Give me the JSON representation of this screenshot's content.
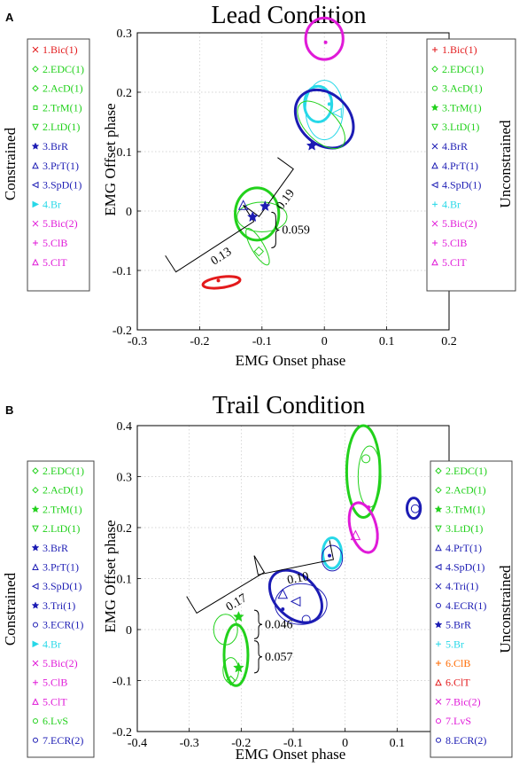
{
  "chart_data": [
    {
      "type": "scatter",
      "panel_label": "A",
      "title": "Lead Condition",
      "xlabel": "EMG Onset phase",
      "ylabel": "EMG Offset phase",
      "xlim": [
        -0.3,
        0.2
      ],
      "ylim": [
        -0.2,
        0.3
      ],
      "xticks": [
        "-0.3",
        "-0.2",
        "-0.1",
        "0",
        "0.1",
        "0.2"
      ],
      "yticks": [
        "-0.2",
        "-0.1",
        "0",
        "0.1",
        "0.2",
        "0.3"
      ],
      "grid": true,
      "left_legend_side_label": "Constrained",
      "right_legend_side_label": "Unconstrained",
      "left_legend": [
        {
          "label": "1.Bic(1)",
          "color": "#e31a1c",
          "marker": "x"
        },
        {
          "label": "2.EDC(1)",
          "color": "#22d11c",
          "marker": "diamond"
        },
        {
          "label": "2.AcD(1)",
          "color": "#22d11c",
          "marker": "diamond"
        },
        {
          "label": "2.TrM(1)",
          "color": "#22d11c",
          "marker": "square"
        },
        {
          "label": "2.LtD(1)",
          "color": "#22d11c",
          "marker": "triangle-down"
        },
        {
          "label": "3.BrR",
          "color": "#1c1cb4",
          "marker": "star"
        },
        {
          "label": "3.PrT(1)",
          "color": "#1c1cb4",
          "marker": "triangle-up"
        },
        {
          "label": "3.SpD(1)",
          "color": "#1c1cb4",
          "marker": "triangle-left"
        },
        {
          "label": "4.Br",
          "color": "#27d8e8",
          "marker": "triangle-right"
        },
        {
          "label": "5.Bic(2)",
          "color": "#e01ad8",
          "marker": "x"
        },
        {
          "label": "5.ClB",
          "color": "#e01ad8",
          "marker": "plus"
        },
        {
          "label": "5.ClT",
          "color": "#e01ad8",
          "marker": "triangle-up"
        }
      ],
      "right_legend": [
        {
          "label": "1.Bic(1)",
          "color": "#e31a1c",
          "marker": "plus"
        },
        {
          "label": "2.EDC(1)",
          "color": "#22d11c",
          "marker": "diamond"
        },
        {
          "label": "3.AcD(1)",
          "color": "#22d11c",
          "marker": "circle"
        },
        {
          "label": "3.TrM(1)",
          "color": "#22d11c",
          "marker": "star"
        },
        {
          "label": "3.LtD(1)",
          "color": "#22d11c",
          "marker": "triangle-down"
        },
        {
          "label": "4.BrR",
          "color": "#1c1cb4",
          "marker": "x"
        },
        {
          "label": "4.PrT(1)",
          "color": "#1c1cb4",
          "marker": "triangle-up"
        },
        {
          "label": "4.SpD(1)",
          "color": "#1c1cb4",
          "marker": "triangle-left"
        },
        {
          "label": "4.Br",
          "color": "#27d8e8",
          "marker": "plus"
        },
        {
          "label": "5.Bic(2)",
          "color": "#e01ad8",
          "marker": "x"
        },
        {
          "label": "5.ClB",
          "color": "#e01ad8",
          "marker": "plus"
        },
        {
          "label": "5.ClT",
          "color": "#e01ad8",
          "marker": "triangle-up"
        }
      ],
      "ellipses": [
        {
          "color": "#e31a1c",
          "thick": true,
          "cx": -0.165,
          "cy": -0.12,
          "rx": 0.03,
          "ry": 0.009,
          "angle": 8
        },
        {
          "color": "#22d11c",
          "thick": true,
          "cx": -0.108,
          "cy": -0.005,
          "rx": 0.035,
          "ry": 0.044,
          "angle": 0
        },
        {
          "color": "#22d11c",
          "thick": false,
          "cx": -0.1,
          "cy": -0.01,
          "rx": 0.04,
          "ry": 0.025,
          "angle": 0
        },
        {
          "color": "#22d11c",
          "thick": false,
          "cx": -0.107,
          "cy": -0.06,
          "rx": 0.01,
          "ry": 0.035,
          "angle": 30
        },
        {
          "color": "#27d8e8",
          "thick": true,
          "cx": -0.01,
          "cy": 0.18,
          "rx": 0.022,
          "ry": 0.03,
          "angle": 0
        },
        {
          "color": "#27d8e8",
          "thick": false,
          "cx": 0.0,
          "cy": 0.17,
          "rx": 0.03,
          "ry": 0.05,
          "angle": 0
        },
        {
          "color": "#1c1cb4",
          "thick": true,
          "cx": 0.0,
          "cy": 0.155,
          "rx": 0.04,
          "ry": 0.055,
          "angle": 45
        },
        {
          "color": "#22d11c",
          "thick": false,
          "cx": -0.005,
          "cy": 0.145,
          "rx": 0.025,
          "ry": 0.05,
          "angle": 45
        },
        {
          "color": "#e01ad8",
          "thick": true,
          "cx": 0.0,
          "cy": 0.29,
          "rx": 0.03,
          "ry": 0.035,
          "angle": 0
        }
      ],
      "points": [
        {
          "x": -0.17,
          "y": -0.117,
          "color": "#e31a1c",
          "marker": "dot"
        },
        {
          "x": -0.13,
          "y": 0.01,
          "color": "#1c1cb4",
          "marker": "triangle-up"
        },
        {
          "x": -0.115,
          "y": -0.01,
          "color": "#1c1cb4",
          "marker": "star"
        },
        {
          "x": -0.095,
          "y": 0.008,
          "color": "#1c1cb4",
          "marker": "star"
        },
        {
          "x": -0.105,
          "y": -0.068,
          "color": "#22d11c",
          "marker": "diamond"
        },
        {
          "x": -0.02,
          "y": 0.11,
          "color": "#1c1cb4",
          "marker": "star"
        },
        {
          "x": 0.008,
          "y": 0.18,
          "color": "#27d8e8",
          "marker": "dot"
        },
        {
          "x": 0.02,
          "y": 0.165,
          "color": "#27d8e8",
          "marker": "triangle-left"
        },
        {
          "x": 0.002,
          "y": 0.284,
          "color": "#e01ad8",
          "marker": "dot"
        }
      ],
      "brackets": [
        {
          "label": "0.13",
          "points": [
            [
              -0.255,
              -0.075
            ],
            [
              -0.13,
              0.01
            ]
          ]
        },
        {
          "label": "0.19",
          "points": [
            [
              -0.13,
              0.01
            ],
            [
              -0.075,
              0.09
            ]
          ]
        }
      ],
      "brace_labels": [
        "0.059"
      ]
    },
    {
      "type": "scatter",
      "panel_label": "B",
      "title": "Trail Condition",
      "xlabel": "EMG Onset phase",
      "ylabel": "EMG Offset phase",
      "xlim": [
        -0.4,
        0.2
      ],
      "ylim": [
        -0.2,
        0.4
      ],
      "xticks": [
        "-0.4",
        "-0.3",
        "-0.2",
        "-0.1",
        "0",
        "0.1",
        "0.2"
      ],
      "yticks": [
        "-0.2",
        "-0.1",
        "0",
        "0.1",
        "0.2",
        "0.3",
        "0.4"
      ],
      "grid": true,
      "left_legend_side_label": "Constrained",
      "right_legend_side_label": "Unconstrained",
      "left_legend": [
        {
          "label": "2.EDC(1)",
          "color": "#22d11c",
          "marker": "diamond"
        },
        {
          "label": "2.AcD(1)",
          "color": "#22d11c",
          "marker": "diamond"
        },
        {
          "label": "2.TrM(1)",
          "color": "#22d11c",
          "marker": "star"
        },
        {
          "label": "2.LtD(1)",
          "color": "#22d11c",
          "marker": "triangle-down"
        },
        {
          "label": "3.BrR",
          "color": "#1c1cb4",
          "marker": "star"
        },
        {
          "label": "3.PrT(1)",
          "color": "#1c1cb4",
          "marker": "triangle-up"
        },
        {
          "label": "3.SpD(1)",
          "color": "#1c1cb4",
          "marker": "triangle-left"
        },
        {
          "label": "3.Tri(1)",
          "color": "#1c1cb4",
          "marker": "star"
        },
        {
          "label": "3.ECR(1)",
          "color": "#1c1cb4",
          "marker": "circle"
        },
        {
          "label": "4.Br",
          "color": "#27d8e8",
          "marker": "triangle-right"
        },
        {
          "label": "5.Bic(2)",
          "color": "#e01ad8",
          "marker": "x"
        },
        {
          "label": "5.ClB",
          "color": "#e01ad8",
          "marker": "plus"
        },
        {
          "label": "5.ClT",
          "color": "#e01ad8",
          "marker": "triangle-up"
        },
        {
          "label": "6.LvS",
          "color": "#22d11c",
          "marker": "circle"
        },
        {
          "label": "7.ECR(2)",
          "color": "#1c1cb4",
          "marker": "circle"
        }
      ],
      "right_legend": [
        {
          "label": "2.EDC(1)",
          "color": "#22d11c",
          "marker": "diamond"
        },
        {
          "label": "2.AcD(1)",
          "color": "#22d11c",
          "marker": "diamond"
        },
        {
          "label": "3.TrM(1)",
          "color": "#22d11c",
          "marker": "star"
        },
        {
          "label": "3.LtD(1)",
          "color": "#22d11c",
          "marker": "triangle-down"
        },
        {
          "label": "4.PrT(1)",
          "color": "#1c1cb4",
          "marker": "triangle-up"
        },
        {
          "label": "4.SpD(1)",
          "color": "#1c1cb4",
          "marker": "triangle-left"
        },
        {
          "label": "4.Tri(1)",
          "color": "#1c1cb4",
          "marker": "x"
        },
        {
          "label": "4.ECR(1)",
          "color": "#1c1cb4",
          "marker": "circle"
        },
        {
          "label": "5.BrR",
          "color": "#1c1cb4",
          "marker": "star"
        },
        {
          "label": "5.Br",
          "color": "#27d8e8",
          "marker": "plus"
        },
        {
          "label": "6.ClB",
          "color": "#ff6a00",
          "marker": "plus"
        },
        {
          "label": "6.ClT",
          "color": "#e31a1c",
          "marker": "triangle-up"
        },
        {
          "label": "7.Bic(2)",
          "color": "#e01ad8",
          "marker": "x"
        },
        {
          "label": "7.LvS",
          "color": "#e01ad8",
          "marker": "circle"
        },
        {
          "label": "8.ECR(2)",
          "color": "#1c1cb4",
          "marker": "circle"
        }
      ],
      "ellipses": [
        {
          "color": "#22d11c",
          "thick": true,
          "cx": -0.21,
          "cy": -0.05,
          "rx": 0.023,
          "ry": 0.06,
          "angle": 0
        },
        {
          "color": "#22d11c",
          "thick": false,
          "cx": -0.22,
          "cy": -0.08,
          "rx": 0.015,
          "ry": 0.025,
          "angle": 0
        },
        {
          "color": "#22d11c",
          "thick": false,
          "cx": -0.23,
          "cy": 0.0,
          "rx": 0.023,
          "ry": 0.03,
          "angle": 0
        },
        {
          "color": "#1c1cb4",
          "thick": true,
          "cx": -0.095,
          "cy": 0.065,
          "rx": 0.04,
          "ry": 0.06,
          "angle": 45
        },
        {
          "color": "#1c1cb4",
          "thick": false,
          "cx": -0.085,
          "cy": 0.05,
          "rx": 0.05,
          "ry": 0.04,
          "angle": 0
        },
        {
          "color": "#27d8e8",
          "thick": true,
          "cx": -0.025,
          "cy": 0.15,
          "rx": 0.018,
          "ry": 0.03,
          "angle": 0
        },
        {
          "color": "#1c1cb4",
          "thick": false,
          "cx": -0.025,
          "cy": 0.14,
          "rx": 0.02,
          "ry": 0.025,
          "angle": 0
        },
        {
          "color": "#22d11c",
          "thick": true,
          "cx": 0.035,
          "cy": 0.31,
          "rx": 0.032,
          "ry": 0.09,
          "angle": 0
        },
        {
          "color": "#22d11c",
          "thick": false,
          "cx": 0.047,
          "cy": 0.3,
          "rx": 0.022,
          "ry": 0.06,
          "angle": 0
        },
        {
          "color": "#e01ad8",
          "thick": true,
          "cx": 0.035,
          "cy": 0.2,
          "rx": 0.025,
          "ry": 0.05,
          "angle": 15
        },
        {
          "color": "#1c1cb4",
          "thick": true,
          "cx": 0.132,
          "cy": 0.238,
          "rx": 0.013,
          "ry": 0.02,
          "angle": 0
        }
      ],
      "points": [
        {
          "x": -0.22,
          "y": -0.1,
          "color": "#22d11c",
          "marker": "diamond"
        },
        {
          "x": -0.205,
          "y": -0.075,
          "color": "#22d11c",
          "marker": "star"
        },
        {
          "x": -0.205,
          "y": 0.025,
          "color": "#22d11c",
          "marker": "star"
        },
        {
          "x": -0.12,
          "y": 0.07,
          "color": "#1c1cb4",
          "marker": "triangle-up"
        },
        {
          "x": -0.095,
          "y": 0.055,
          "color": "#1c1cb4",
          "marker": "triangle-left"
        },
        {
          "x": -0.12,
          "y": 0.04,
          "color": "#1c1cb4",
          "marker": "dot"
        },
        {
          "x": -0.075,
          "y": 0.02,
          "color": "#1c1cb4",
          "marker": "circle"
        },
        {
          "x": -0.03,
          "y": 0.145,
          "color": "#1c1cb4",
          "marker": "dot"
        },
        {
          "x": 0.02,
          "y": 0.185,
          "color": "#e01ad8",
          "marker": "triangle-up"
        },
        {
          "x": 0.045,
          "y": 0.24,
          "color": "#e01ad8",
          "marker": "dot"
        },
        {
          "x": 0.04,
          "y": 0.335,
          "color": "#22d11c",
          "marker": "circle"
        },
        {
          "x": 0.135,
          "y": 0.237,
          "color": "#1c1cb4",
          "marker": "circle"
        }
      ],
      "brackets": [
        {
          "label": "0.17",
          "points": [
            [
              -0.305,
              0.065
            ],
            [
              -0.175,
              0.145
            ]
          ]
        },
        {
          "label": "0.10",
          "points": [
            [
              -0.175,
              0.145
            ],
            [
              -0.03,
              0.175
            ]
          ]
        }
      ],
      "brace_labels": [
        "0.046",
        "0.057"
      ]
    }
  ]
}
